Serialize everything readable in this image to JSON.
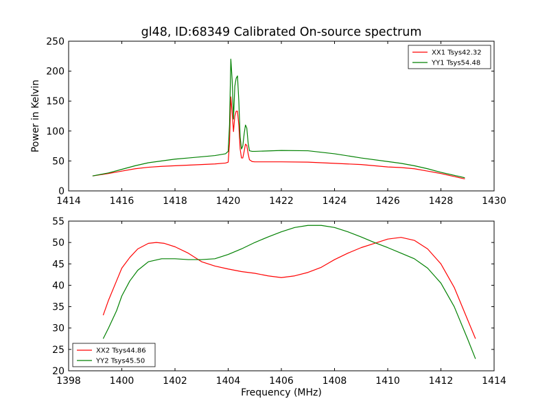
{
  "figure": {
    "title": "gl48, ID:68349 Calibrated On-source spectrum",
    "ylabel": "Power in Kelvin",
    "xlabel": "Frequency (MHz)"
  },
  "chart_data": [
    {
      "type": "line",
      "title": "gl48, ID:68349 Calibrated On-source spectrum",
      "ylabel": "Power in Kelvin",
      "xlabel": "",
      "xlim": [
        1414,
        1430
      ],
      "ylim": [
        0,
        250
      ],
      "xticks": [
        1414,
        1416,
        1418,
        1420,
        1422,
        1424,
        1426,
        1428,
        1430
      ],
      "yticks": [
        0,
        50,
        100,
        150,
        200,
        250
      ],
      "grid": false,
      "legend_position": "top-right",
      "series": [
        {
          "name": "XX1 Tsys42.32",
          "color": "#ff0000",
          "points": [
            [
              1414.9,
              25
            ],
            [
              1415.5,
              29
            ],
            [
              1416.0,
              33
            ],
            [
              1416.5,
              37
            ],
            [
              1417.0,
              39.5
            ],
            [
              1417.5,
              41
            ],
            [
              1418.0,
              42
            ],
            [
              1418.5,
              43
            ],
            [
              1419.0,
              44
            ],
            [
              1419.5,
              45
            ],
            [
              1419.9,
              46.5
            ],
            [
              1420.0,
              48
            ],
            [
              1420.05,
              80
            ],
            [
              1420.1,
              157
            ],
            [
              1420.15,
              130
            ],
            [
              1420.2,
              99
            ],
            [
              1420.25,
              125
            ],
            [
              1420.3,
              133
            ],
            [
              1420.35,
              133
            ],
            [
              1420.4,
              110
            ],
            [
              1420.45,
              70
            ],
            [
              1420.5,
              55
            ],
            [
              1420.55,
              55
            ],
            [
              1420.6,
              66
            ],
            [
              1420.65,
              78
            ],
            [
              1420.7,
              76
            ],
            [
              1420.75,
              62
            ],
            [
              1420.8,
              52
            ],
            [
              1420.9,
              49
            ],
            [
              1421.0,
              48.5
            ],
            [
              1422.0,
              48.5
            ],
            [
              1423.0,
              48
            ],
            [
              1424.0,
              46
            ],
            [
              1425.0,
              44
            ],
            [
              1426.0,
              40
            ],
            [
              1426.5,
              39
            ],
            [
              1427.0,
              37
            ],
            [
              1427.5,
              33
            ],
            [
              1428.0,
              29
            ],
            [
              1428.5,
              24
            ],
            [
              1428.9,
              20
            ]
          ]
        },
        {
          "name": "YY1 Tsys54.48",
          "color": "#008000",
          "points": [
            [
              1414.9,
              25
            ],
            [
              1415.5,
              30
            ],
            [
              1416.0,
              36
            ],
            [
              1416.5,
              42
            ],
            [
              1417.0,
              47
            ],
            [
              1417.5,
              50
            ],
            [
              1418.0,
              53
            ],
            [
              1418.5,
              55
            ],
            [
              1419.0,
              57
            ],
            [
              1419.5,
              59
            ],
            [
              1419.9,
              62
            ],
            [
              1420.0,
              66
            ],
            [
              1420.05,
              110
            ],
            [
              1420.1,
              220
            ],
            [
              1420.15,
              185
            ],
            [
              1420.2,
              120
            ],
            [
              1420.25,
              175
            ],
            [
              1420.3,
              188
            ],
            [
              1420.35,
              192
            ],
            [
              1420.4,
              150
            ],
            [
              1420.45,
              90
            ],
            [
              1420.5,
              70
            ],
            [
              1420.55,
              75
            ],
            [
              1420.6,
              95
            ],
            [
              1420.65,
              110
            ],
            [
              1420.7,
              105
            ],
            [
              1420.75,
              80
            ],
            [
              1420.8,
              67
            ],
            [
              1420.9,
              66
            ],
            [
              1421.0,
              66
            ],
            [
              1422.0,
              67.5
            ],
            [
              1423.0,
              67
            ],
            [
              1424.0,
              62
            ],
            [
              1425.0,
              55
            ],
            [
              1426.0,
              49
            ],
            [
              1426.5,
              46
            ],
            [
              1427.0,
              42
            ],
            [
              1427.5,
              37
            ],
            [
              1428.0,
              31
            ],
            [
              1428.5,
              26
            ],
            [
              1428.9,
              22
            ]
          ]
        }
      ]
    },
    {
      "type": "line",
      "title": "",
      "ylabel": "",
      "xlabel": "Frequency (MHz)",
      "xlim": [
        1398,
        1414
      ],
      "ylim": [
        20,
        55
      ],
      "xticks": [
        1398,
        1400,
        1402,
        1404,
        1406,
        1408,
        1410,
        1412,
        1414
      ],
      "yticks": [
        20,
        25,
        30,
        35,
        40,
        45,
        50,
        55
      ],
      "grid": false,
      "legend_position": "bottom-left",
      "series": [
        {
          "name": "XX2 Tsys44.86",
          "color": "#ff0000",
          "points": [
            [
              1399.3,
              33
            ],
            [
              1399.5,
              36.5
            ],
            [
              1399.8,
              41
            ],
            [
              1400.0,
              44
            ],
            [
              1400.3,
              46.5
            ],
            [
              1400.6,
              48.5
            ],
            [
              1401.0,
              49.8
            ],
            [
              1401.3,
              50
            ],
            [
              1401.6,
              49.8
            ],
            [
              1402.0,
              49
            ],
            [
              1402.5,
              47.5
            ],
            [
              1403.0,
              45.5
            ],
            [
              1403.5,
              44.5
            ],
            [
              1404.0,
              43.8
            ],
            [
              1404.5,
              43.2
            ],
            [
              1405.0,
              42.8
            ],
            [
              1405.5,
              42.2
            ],
            [
              1406.0,
              41.8
            ],
            [
              1406.5,
              42.2
            ],
            [
              1407.0,
              43
            ],
            [
              1407.5,
              44.2
            ],
            [
              1408.0,
              46
            ],
            [
              1408.5,
              47.5
            ],
            [
              1409.0,
              48.8
            ],
            [
              1409.5,
              49.8
            ],
            [
              1410.0,
              50.8
            ],
            [
              1410.5,
              51.2
            ],
            [
              1411.0,
              50.5
            ],
            [
              1411.5,
              48.5
            ],
            [
              1412.0,
              45
            ],
            [
              1412.5,
              39.5
            ],
            [
              1413.0,
              32
            ],
            [
              1413.3,
              27.5
            ]
          ]
        },
        {
          "name": "YY2 Tsys45.50",
          "color": "#008000",
          "points": [
            [
              1399.3,
              27.5
            ],
            [
              1399.5,
              30
            ],
            [
              1399.8,
              34
            ],
            [
              1400.0,
              37.5
            ],
            [
              1400.3,
              41
            ],
            [
              1400.6,
              43.5
            ],
            [
              1401.0,
              45.5
            ],
            [
              1401.5,
              46.2
            ],
            [
              1402.0,
              46.2
            ],
            [
              1402.5,
              46
            ],
            [
              1403.0,
              46
            ],
            [
              1403.5,
              46.2
            ],
            [
              1404.0,
              47.2
            ],
            [
              1404.5,
              48.5
            ],
            [
              1405.0,
              50
            ],
            [
              1405.5,
              51.3
            ],
            [
              1406.0,
              52.5
            ],
            [
              1406.5,
              53.5
            ],
            [
              1407.0,
              54
            ],
            [
              1407.5,
              54
            ],
            [
              1408.0,
              53.5
            ],
            [
              1408.5,
              52.5
            ],
            [
              1409.0,
              51.3
            ],
            [
              1409.5,
              50
            ],
            [
              1410.0,
              48.8
            ],
            [
              1410.5,
              47.5
            ],
            [
              1411.0,
              46.2
            ],
            [
              1411.5,
              44
            ],
            [
              1412.0,
              40.5
            ],
            [
              1412.5,
              35
            ],
            [
              1413.0,
              27.5
            ],
            [
              1413.3,
              22.8
            ]
          ]
        }
      ]
    }
  ]
}
